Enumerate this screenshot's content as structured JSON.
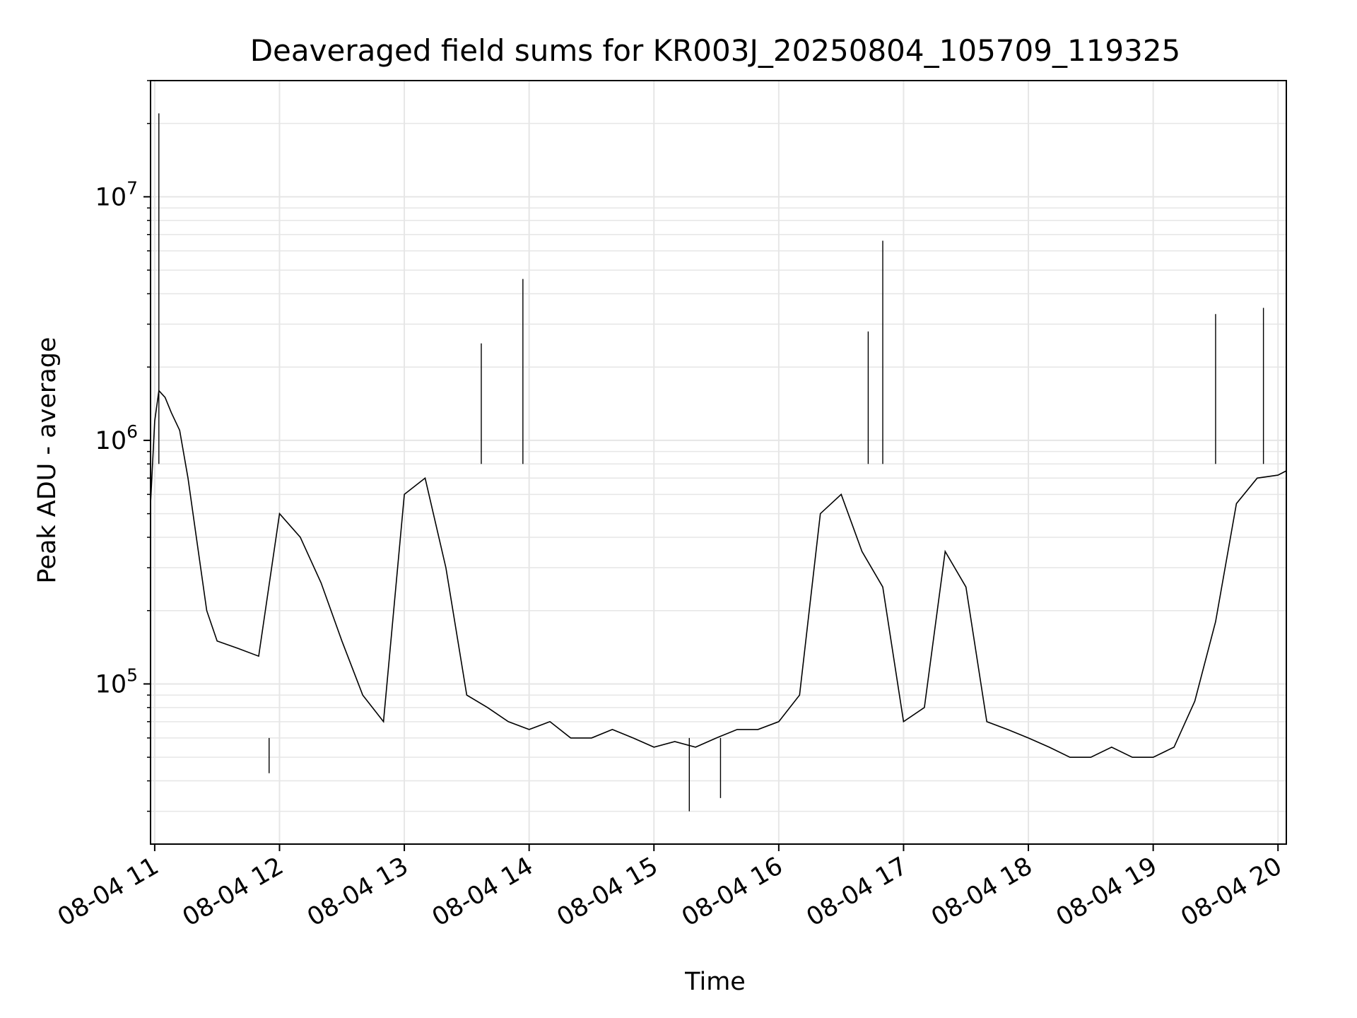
{
  "chart_data": {
    "type": "line",
    "title": "Deaveraged field sums for KR003J_20250804_105709_119325",
    "xlabel": "Time",
    "ylabel": "Peak ADU - average",
    "yscale": "log",
    "ylim": [
      22000,
      30000000
    ],
    "xlim": [
      "2025-08-04 10:58",
      "2025-08-04 20:04"
    ],
    "x_ticks": [
      "08-04 11",
      "08-04 12",
      "08-04 13",
      "08-04 14",
      "08-04 15",
      "08-04 16",
      "08-04 17",
      "08-04 18",
      "08-04 19",
      "08-04 20"
    ],
    "y_ticks": [
      {
        "value": 100000,
        "base": "10",
        "exp": "5"
      },
      {
        "value": 1000000,
        "base": "10",
        "exp": "6"
      },
      {
        "value": 10000000,
        "base": "10",
        "exp": "7"
      }
    ],
    "grid": true,
    "series": [
      {
        "color": "#000000",
        "x": [
          "2025-08-04 10:58",
          "2025-08-04 11:00",
          "2025-08-04 11:02",
          "2025-08-04 11:05",
          "2025-08-04 11:08",
          "2025-08-04 11:12",
          "2025-08-04 11:16",
          "2025-08-04 11:20",
          "2025-08-04 11:25",
          "2025-08-04 11:30",
          "2025-08-04 11:40",
          "2025-08-04 11:50",
          "2025-08-04 12:00",
          "2025-08-04 12:10",
          "2025-08-04 12:20",
          "2025-08-04 12:30",
          "2025-08-04 12:40",
          "2025-08-04 12:50",
          "2025-08-04 13:00",
          "2025-08-04 13:10",
          "2025-08-04 13:20",
          "2025-08-04 13:30",
          "2025-08-04 13:40",
          "2025-08-04 13:50",
          "2025-08-04 14:00",
          "2025-08-04 14:10",
          "2025-08-04 14:20",
          "2025-08-04 14:30",
          "2025-08-04 14:40",
          "2025-08-04 14:50",
          "2025-08-04 15:00",
          "2025-08-04 15:10",
          "2025-08-04 15:20",
          "2025-08-04 15:30",
          "2025-08-04 15:40",
          "2025-08-04 15:50",
          "2025-08-04 16:00",
          "2025-08-04 16:10",
          "2025-08-04 16:20",
          "2025-08-04 16:30",
          "2025-08-04 16:40",
          "2025-08-04 16:50",
          "2025-08-04 17:00",
          "2025-08-04 17:10",
          "2025-08-04 17:20",
          "2025-08-04 17:30",
          "2025-08-04 17:40",
          "2025-08-04 17:50",
          "2025-08-04 18:00",
          "2025-08-04 18:10",
          "2025-08-04 18:20",
          "2025-08-04 18:30",
          "2025-08-04 18:40",
          "2025-08-04 18:50",
          "2025-08-04 19:00",
          "2025-08-04 19:10",
          "2025-08-04 19:20",
          "2025-08-04 19:30",
          "2025-08-04 19:40",
          "2025-08-04 19:50",
          "2025-08-04 20:00",
          "2025-08-04 20:04"
        ],
        "y": [
          550000,
          1200000,
          1600000,
          1500000,
          1300000,
          1100000,
          700000,
          400000,
          200000,
          150000,
          140000,
          130000,
          500000,
          400000,
          260000,
          150000,
          90000,
          70000,
          600000,
          700000,
          300000,
          90000,
          80000,
          70000,
          65000,
          70000,
          60000,
          60000,
          65000,
          60000,
          55000,
          58000,
          55000,
          60000,
          65000,
          65000,
          70000,
          90000,
          500000,
          600000,
          350000,
          250000,
          70000,
          80000,
          350000,
          250000,
          70000,
          65000,
          60000,
          55000,
          50000,
          50000,
          55000,
          50000,
          50000,
          55000,
          85000,
          180000,
          550000,
          700000,
          720000,
          750000
        ]
      }
    ],
    "spikes": [
      {
        "x": "2025-08-04 11:02",
        "y": 22000000
      },
      {
        "x": "2025-08-04 13:57",
        "y": 4600000
      },
      {
        "x": "2025-08-04 13:37",
        "y": 2500000
      },
      {
        "x": "2025-08-04 16:50",
        "y": 6600000
      },
      {
        "x": "2025-08-04 16:43",
        "y": 2800000
      },
      {
        "x": "2025-08-04 19:30",
        "y": 3300000
      },
      {
        "x": "2025-08-04 19:53",
        "y": 3500000
      },
      {
        "x": "2025-08-04 11:55",
        "y": 43000
      },
      {
        "x": "2025-08-04 15:17",
        "y": 30000
      },
      {
        "x": "2025-08-04 15:32",
        "y": 34000
      }
    ]
  }
}
